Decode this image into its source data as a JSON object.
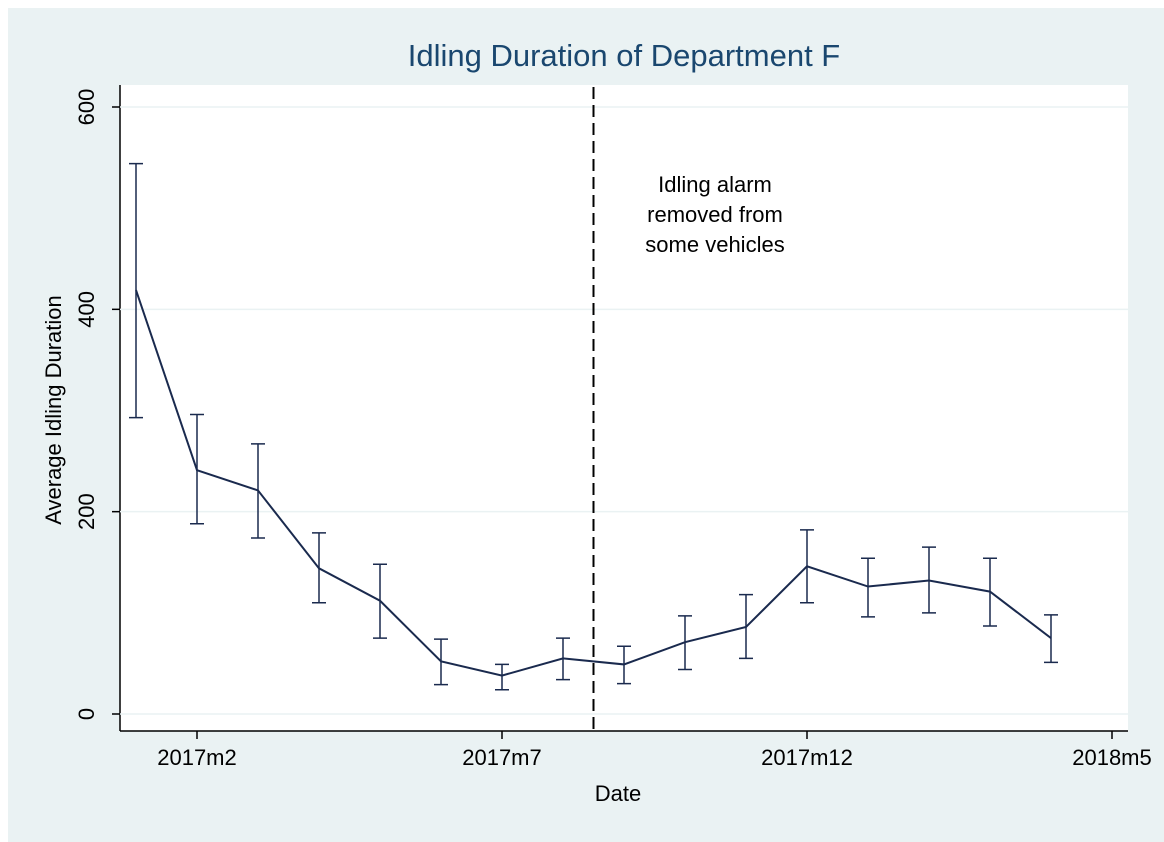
{
  "chart_data": {
    "type": "line",
    "title": "Idling Duration of Department F",
    "x_label": "Date",
    "y_label": "Average Idling Duration",
    "categories": [
      null,
      "2017m2",
      null,
      null,
      null,
      null,
      "2017m7",
      null,
      null,
      null,
      null,
      "2017m12",
      null,
      null,
      null,
      null,
      "2018m5"
    ],
    "series": [
      {
        "color": "#1a2a4e",
        "values": [
          419,
          241,
          221,
          144,
          112,
          52,
          38,
          55,
          49,
          71,
          86,
          146,
          126,
          132,
          121,
          75,
          null
        ],
        "lower": [
          293,
          188,
          174,
          110,
          75,
          29,
          24,
          34,
          30,
          44,
          55,
          110,
          96,
          100,
          87,
          51,
          null
        ],
        "upper": [
          544,
          296,
          267,
          179,
          148,
          74,
          49,
          75,
          67,
          97,
          118,
          182,
          154,
          165,
          154,
          98,
          null
        ]
      }
    ],
    "ylim": [
      0,
      600
    ],
    "yticks": [
      0,
      200,
      400,
      600
    ],
    "grid": true,
    "annotation": [
      "Idling alarm",
      "removed from",
      "some vehicles"
    ]
  }
}
